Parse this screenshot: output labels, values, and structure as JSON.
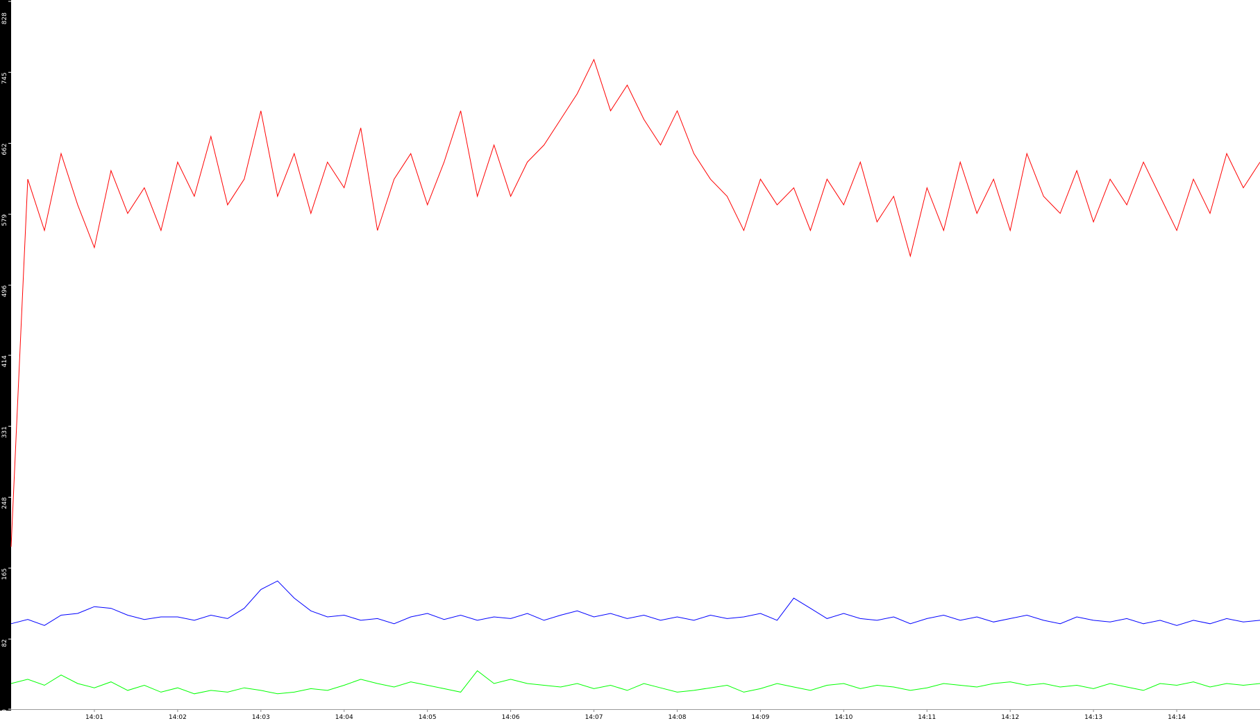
{
  "chart_data": {
    "type": "line",
    "x": [
      0,
      0.2,
      0.4,
      0.6,
      0.8,
      1,
      1.2,
      1.4,
      1.6,
      1.8,
      2,
      2.2,
      2.4,
      2.6,
      2.8,
      3,
      3.2,
      3.4,
      3.6,
      3.8,
      4,
      4.2,
      4.4,
      4.6,
      4.8,
      5,
      5.2,
      5.4,
      5.6,
      5.8,
      6,
      6.2,
      6.4,
      6.6,
      6.8,
      7,
      7.2,
      7.4,
      7.6,
      7.8,
      8,
      8.2,
      8.4,
      8.6,
      8.8,
      9,
      9.2,
      9.4,
      9.6,
      9.8,
      10,
      10.2,
      10.4,
      10.6,
      10.8,
      11,
      11.2,
      11.4,
      11.6,
      11.8,
      12,
      12.2,
      12.4,
      12.6,
      12.8,
      13,
      13.2,
      13.4,
      13.6,
      13.8,
      14,
      14.2,
      14.4,
      14.6,
      14.8,
      15
    ],
    "series": [
      {
        "color": "#ff0000",
        "values": [
          190,
          620,
          560,
          650,
          590,
          540,
          630,
          580,
          610,
          560,
          640,
          600,
          670,
          590,
          620,
          700,
          600,
          650,
          580,
          640,
          610,
          680,
          560,
          620,
          650,
          590,
          640,
          700,
          600,
          660,
          600,
          640,
          660,
          690,
          720,
          760,
          700,
          730,
          690,
          660,
          700,
          650,
          620,
          600,
          560,
          620,
          590,
          610,
          560,
          620,
          590,
          640,
          570,
          600,
          530,
          610,
          560,
          640,
          580,
          620,
          560,
          650,
          600,
          580,
          630,
          570,
          620,
          590,
          640,
          600,
          560,
          620,
          580,
          650,
          610,
          640
        ]
      },
      {
        "color": "#0000ff",
        "values": [
          100,
          105,
          98,
          110,
          112,
          120,
          118,
          110,
          105,
          108,
          108,
          104,
          110,
          106,
          118,
          140,
          150,
          130,
          115,
          108,
          110,
          104,
          106,
          100,
          108,
          112,
          105,
          110,
          104,
          108,
          106,
          112,
          104,
          110,
          115,
          108,
          112,
          106,
          110,
          104,
          108,
          104,
          110,
          106,
          108,
          112,
          104,
          130,
          118,
          106,
          112,
          106,
          104,
          108,
          100,
          106,
          110,
          104,
          108,
          102,
          106,
          110,
          104,
          100,
          108,
          104,
          102,
          106,
          100,
          104,
          98,
          104,
          100,
          106,
          102,
          104
        ]
      },
      {
        "color": "#00ff00",
        "values": [
          30,
          35,
          28,
          40,
          30,
          25,
          32,
          22,
          28,
          20,
          25,
          18,
          22,
          20,
          25,
          22,
          18,
          20,
          24,
          22,
          28,
          35,
          30,
          26,
          32,
          28,
          24,
          20,
          45,
          30,
          35,
          30,
          28,
          26,
          30,
          24,
          28,
          22,
          30,
          25,
          20,
          22,
          25,
          28,
          20,
          24,
          30,
          26,
          22,
          28,
          30,
          24,
          28,
          26,
          22,
          25,
          30,
          28,
          26,
          30,
          32,
          28,
          30,
          26,
          28,
          24,
          30,
          26,
          22,
          30,
          28,
          32,
          26,
          30,
          28,
          30
        ]
      }
    ],
    "xlim": [
      0,
      15
    ],
    "xticks": [
      {
        "value": 1,
        "label": "14:01"
      },
      {
        "value": 2,
        "label": "14:02"
      },
      {
        "value": 3,
        "label": "14:03"
      },
      {
        "value": 4,
        "label": "14:04"
      },
      {
        "value": 5,
        "label": "14:05"
      },
      {
        "value": 6,
        "label": "14:06"
      },
      {
        "value": 7,
        "label": "14:07"
      },
      {
        "value": 8,
        "label": "14:08"
      },
      {
        "value": 9,
        "label": "14:09"
      },
      {
        "value": 10,
        "label": "14:10"
      },
      {
        "value": 11,
        "label": "14:11"
      },
      {
        "value": 12,
        "label": "14:12"
      },
      {
        "value": 13,
        "label": "14:13"
      },
      {
        "value": 14,
        "label": "14:14"
      }
    ],
    "ylim": [
      0,
      828
    ],
    "yticks": [
      0,
      82,
      165,
      248,
      331,
      414,
      496,
      579,
      662,
      745,
      828
    ]
  }
}
